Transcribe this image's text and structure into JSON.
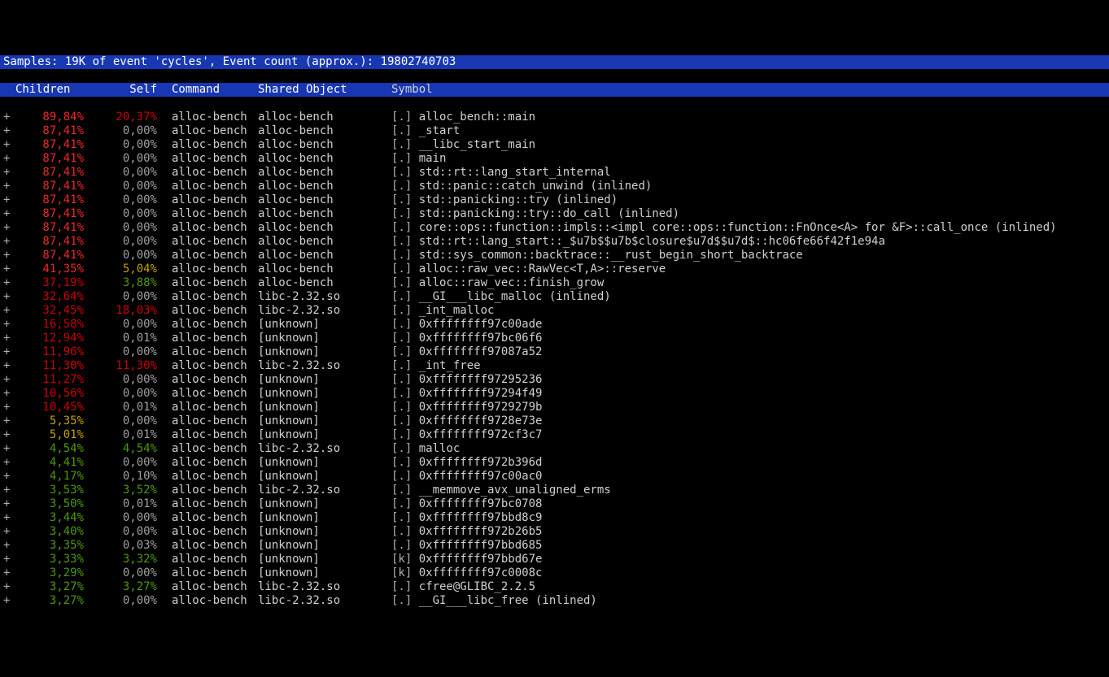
{
  "colors": {
    "red_bright": "#ef2929",
    "red_dark": "#cc0000",
    "orange": "#c4a000",
    "green": "#4e9a06",
    "grey": "#a0a0a0",
    "white": "#ffffff"
  },
  "header_line": "Samples: 19K of event 'cycles', Event count (approx.): 19802740703",
  "columns": {
    "children": "Children",
    "self": "Self",
    "command": "Command",
    "shared_object": "Shared Object",
    "symbol": "Symbol"
  },
  "rows": [
    {
      "children": "89,84%",
      "c_col": "red_bright",
      "self": "20,37%",
      "s_col": "red_dark",
      "cmd": "alloc-bench",
      "obj": "alloc-bench",
      "tag": "[.]",
      "sym": "alloc_bench::main"
    },
    {
      "children": "87,41%",
      "c_col": "red_bright",
      "self": "0,00%",
      "s_col": "grey",
      "cmd": "alloc-bench",
      "obj": "alloc-bench",
      "tag": "[.]",
      "sym": "_start"
    },
    {
      "children": "87,41%",
      "c_col": "red_bright",
      "self": "0,00%",
      "s_col": "grey",
      "cmd": "alloc-bench",
      "obj": "alloc-bench",
      "tag": "[.]",
      "sym": "__libc_start_main"
    },
    {
      "children": "87,41%",
      "c_col": "red_bright",
      "self": "0,00%",
      "s_col": "grey",
      "cmd": "alloc-bench",
      "obj": "alloc-bench",
      "tag": "[.]",
      "sym": "main"
    },
    {
      "children": "87,41%",
      "c_col": "red_bright",
      "self": "0,00%",
      "s_col": "grey",
      "cmd": "alloc-bench",
      "obj": "alloc-bench",
      "tag": "[.]",
      "sym": "std::rt::lang_start_internal"
    },
    {
      "children": "87,41%",
      "c_col": "red_bright",
      "self": "0,00%",
      "s_col": "grey",
      "cmd": "alloc-bench",
      "obj": "alloc-bench",
      "tag": "[.]",
      "sym": "std::panic::catch_unwind (inlined)"
    },
    {
      "children": "87,41%",
      "c_col": "red_bright",
      "self": "0,00%",
      "s_col": "grey",
      "cmd": "alloc-bench",
      "obj": "alloc-bench",
      "tag": "[.]",
      "sym": "std::panicking::try (inlined)"
    },
    {
      "children": "87,41%",
      "c_col": "red_bright",
      "self": "0,00%",
      "s_col": "grey",
      "cmd": "alloc-bench",
      "obj": "alloc-bench",
      "tag": "[.]",
      "sym": "std::panicking::try::do_call (inlined)"
    },
    {
      "children": "87,41%",
      "c_col": "red_bright",
      "self": "0,00%",
      "s_col": "grey",
      "cmd": "alloc-bench",
      "obj": "alloc-bench",
      "tag": "[.]",
      "sym": "core::ops::function::impls::<impl core::ops::function::FnOnce<A> for &F>::call_once (inlined)"
    },
    {
      "children": "87,41%",
      "c_col": "red_bright",
      "self": "0,00%",
      "s_col": "grey",
      "cmd": "alloc-bench",
      "obj": "alloc-bench",
      "tag": "[.]",
      "sym": "std::rt::lang_start::_$u7b$$u7b$closure$u7d$$u7d$::hc06fe66f42f1e94a"
    },
    {
      "children": "87,41%",
      "c_col": "red_bright",
      "self": "0,00%",
      "s_col": "grey",
      "cmd": "alloc-bench",
      "obj": "alloc-bench",
      "tag": "[.]",
      "sym": "std::sys_common::backtrace::__rust_begin_short_backtrace"
    },
    {
      "children": "41,35%",
      "c_col": "red_bright",
      "self": "5,04%",
      "s_col": "orange",
      "cmd": "alloc-bench",
      "obj": "alloc-bench",
      "tag": "[.]",
      "sym": "alloc::raw_vec::RawVec<T,A>::reserve"
    },
    {
      "children": "37,19%",
      "c_col": "red_dark",
      "self": "3,88%",
      "s_col": "green",
      "cmd": "alloc-bench",
      "obj": "alloc-bench",
      "tag": "[.]",
      "sym": "alloc::raw_vec::finish_grow"
    },
    {
      "children": "32,64%",
      "c_col": "red_dark",
      "self": "0,00%",
      "s_col": "grey",
      "cmd": "alloc-bench",
      "obj": "libc-2.32.so",
      "tag": "[.]",
      "sym": "__GI___libc_malloc (inlined)"
    },
    {
      "children": "32,45%",
      "c_col": "red_dark",
      "self": "18,03%",
      "s_col": "red_dark",
      "cmd": "alloc-bench",
      "obj": "libc-2.32.so",
      "tag": "[.]",
      "sym": "_int_malloc"
    },
    {
      "children": "16,58%",
      "c_col": "red_dark",
      "self": "0,00%",
      "s_col": "grey",
      "cmd": "alloc-bench",
      "obj": "[unknown]",
      "tag": "[.]",
      "sym": "0xffffffff97c00ade"
    },
    {
      "children": "12,94%",
      "c_col": "red_dark",
      "self": "0,01%",
      "s_col": "grey",
      "cmd": "alloc-bench",
      "obj": "[unknown]",
      "tag": "[.]",
      "sym": "0xffffffff97bc06f6"
    },
    {
      "children": "11,96%",
      "c_col": "red_dark",
      "self": "0,00%",
      "s_col": "grey",
      "cmd": "alloc-bench",
      "obj": "[unknown]",
      "tag": "[.]",
      "sym": "0xffffffff97087a52"
    },
    {
      "children": "11,30%",
      "c_col": "red_dark",
      "self": "11,30%",
      "s_col": "red_dark",
      "cmd": "alloc-bench",
      "obj": "libc-2.32.so",
      "tag": "[.]",
      "sym": "_int_free"
    },
    {
      "children": "11,27%",
      "c_col": "red_dark",
      "self": "0,00%",
      "s_col": "grey",
      "cmd": "alloc-bench",
      "obj": "[unknown]",
      "tag": "[.]",
      "sym": "0xffffffff97295236"
    },
    {
      "children": "10,56%",
      "c_col": "red_dark",
      "self": "0,00%",
      "s_col": "grey",
      "cmd": "alloc-bench",
      "obj": "[unknown]",
      "tag": "[.]",
      "sym": "0xffffffff97294f49"
    },
    {
      "children": "10,45%",
      "c_col": "red_dark",
      "self": "0,01%",
      "s_col": "grey",
      "cmd": "alloc-bench",
      "obj": "[unknown]",
      "tag": "[.]",
      "sym": "0xffffffff9729279b"
    },
    {
      "children": "5,35%",
      "c_col": "orange",
      "self": "0,00%",
      "s_col": "grey",
      "cmd": "alloc-bench",
      "obj": "[unknown]",
      "tag": "[.]",
      "sym": "0xffffffff9728e73e"
    },
    {
      "children": "5,01%",
      "c_col": "orange",
      "self": "0,01%",
      "s_col": "grey",
      "cmd": "alloc-bench",
      "obj": "[unknown]",
      "tag": "[.]",
      "sym": "0xffffffff972cf3c7"
    },
    {
      "children": "4,54%",
      "c_col": "green",
      "self": "4,54%",
      "s_col": "green",
      "cmd": "alloc-bench",
      "obj": "libc-2.32.so",
      "tag": "[.]",
      "sym": "malloc"
    },
    {
      "children": "4,41%",
      "c_col": "green",
      "self": "0,00%",
      "s_col": "grey",
      "cmd": "alloc-bench",
      "obj": "[unknown]",
      "tag": "[.]",
      "sym": "0xffffffff972b396d"
    },
    {
      "children": "4,17%",
      "c_col": "green",
      "self": "0,10%",
      "s_col": "grey",
      "cmd": "alloc-bench",
      "obj": "[unknown]",
      "tag": "[.]",
      "sym": "0xffffffff97c00ac0"
    },
    {
      "children": "3,53%",
      "c_col": "green",
      "self": "3,52%",
      "s_col": "green",
      "cmd": "alloc-bench",
      "obj": "libc-2.32.so",
      "tag": "[.]",
      "sym": "__memmove_avx_unaligned_erms"
    },
    {
      "children": "3,50%",
      "c_col": "green",
      "self": "0,01%",
      "s_col": "grey",
      "cmd": "alloc-bench",
      "obj": "[unknown]",
      "tag": "[.]",
      "sym": "0xffffffff97bc0708"
    },
    {
      "children": "3,44%",
      "c_col": "green",
      "self": "0,00%",
      "s_col": "grey",
      "cmd": "alloc-bench",
      "obj": "[unknown]",
      "tag": "[.]",
      "sym": "0xffffffff97bbd8c9"
    },
    {
      "children": "3,40%",
      "c_col": "green",
      "self": "0,00%",
      "s_col": "grey",
      "cmd": "alloc-bench",
      "obj": "[unknown]",
      "tag": "[.]",
      "sym": "0xffffffff972b26b5"
    },
    {
      "children": "3,35%",
      "c_col": "green",
      "self": "0,03%",
      "s_col": "grey",
      "cmd": "alloc-bench",
      "obj": "[unknown]",
      "tag": "[.]",
      "sym": "0xffffffff97bbd685"
    },
    {
      "children": "3,33%",
      "c_col": "green",
      "self": "3,32%",
      "s_col": "green",
      "cmd": "alloc-bench",
      "obj": "[unknown]",
      "tag": "[k]",
      "sym": "0xffffffff97bbd67e"
    },
    {
      "children": "3,29%",
      "c_col": "green",
      "self": "0,00%",
      "s_col": "grey",
      "cmd": "alloc-bench",
      "obj": "[unknown]",
      "tag": "[k]",
      "sym": "0xffffffff97c0008c"
    },
    {
      "children": "3,27%",
      "c_col": "green",
      "self": "3,27%",
      "s_col": "green",
      "cmd": "alloc-bench",
      "obj": "libc-2.32.so",
      "tag": "[.]",
      "sym": "cfree@GLIBC_2.2.5"
    },
    {
      "children": "3,27%",
      "c_col": "green",
      "self": "0,00%",
      "s_col": "grey",
      "cmd": "alloc-bench",
      "obj": "libc-2.32.so",
      "tag": "[.]",
      "sym": "__GI___libc_free (inlined)"
    }
  ]
}
